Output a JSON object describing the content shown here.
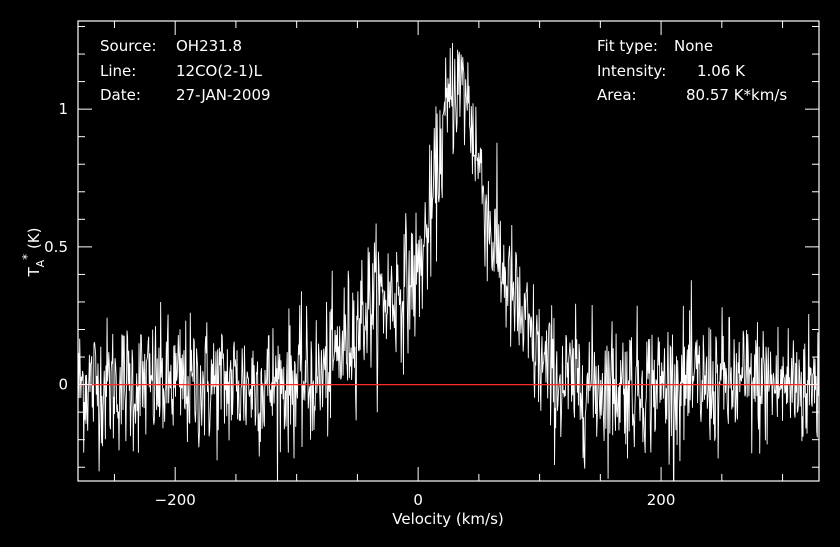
{
  "info_left": [
    {
      "key": "Source:",
      "value": "OH231.8"
    },
    {
      "key": "Line:",
      "value": "12CO(2-1)L"
    },
    {
      "key": "Date:",
      "value": "27-JAN-2009"
    }
  ],
  "info_right": [
    {
      "key": "Fit type:",
      "value": "None"
    },
    {
      "key": "Intensity:",
      "value": "1.06 K"
    },
    {
      "key": "Area:",
      "value": "80.57 K*km/s"
    }
  ],
  "colors": {
    "background": "#000000",
    "axes": "#ffffff",
    "spectrum": "#ffffff",
    "baseline": "#ff2a2a"
  },
  "chart_data": {
    "type": "line",
    "title": "",
    "xlabel": "Velocity (km/s)",
    "ylabel": "T_A^* (K)",
    "xlim": [
      -280,
      330
    ],
    "ylim": [
      -0.35,
      1.32
    ],
    "xticks": [
      -200,
      0,
      200
    ],
    "xtick_labels": [
      "−200",
      "0",
      "200"
    ],
    "yticks": [
      0,
      0.5,
      1
    ],
    "ytick_labels": [
      "0",
      "0.5",
      "1"
    ],
    "baseline_y": 0,
    "noise_rms": 0.12,
    "profile": {
      "x": [
        -280,
        -120,
        -80,
        -60,
        -40,
        -20,
        0,
        10,
        20,
        30,
        40,
        50,
        60,
        75,
        90,
        105,
        120,
        330
      ],
      "y": [
        0.0,
        0.0,
        0.02,
        0.15,
        0.3,
        0.32,
        0.4,
        0.6,
        0.9,
        1.1,
        1.05,
        0.8,
        0.55,
        0.35,
        0.18,
        0.05,
        0.0,
        0.0
      ]
    }
  }
}
